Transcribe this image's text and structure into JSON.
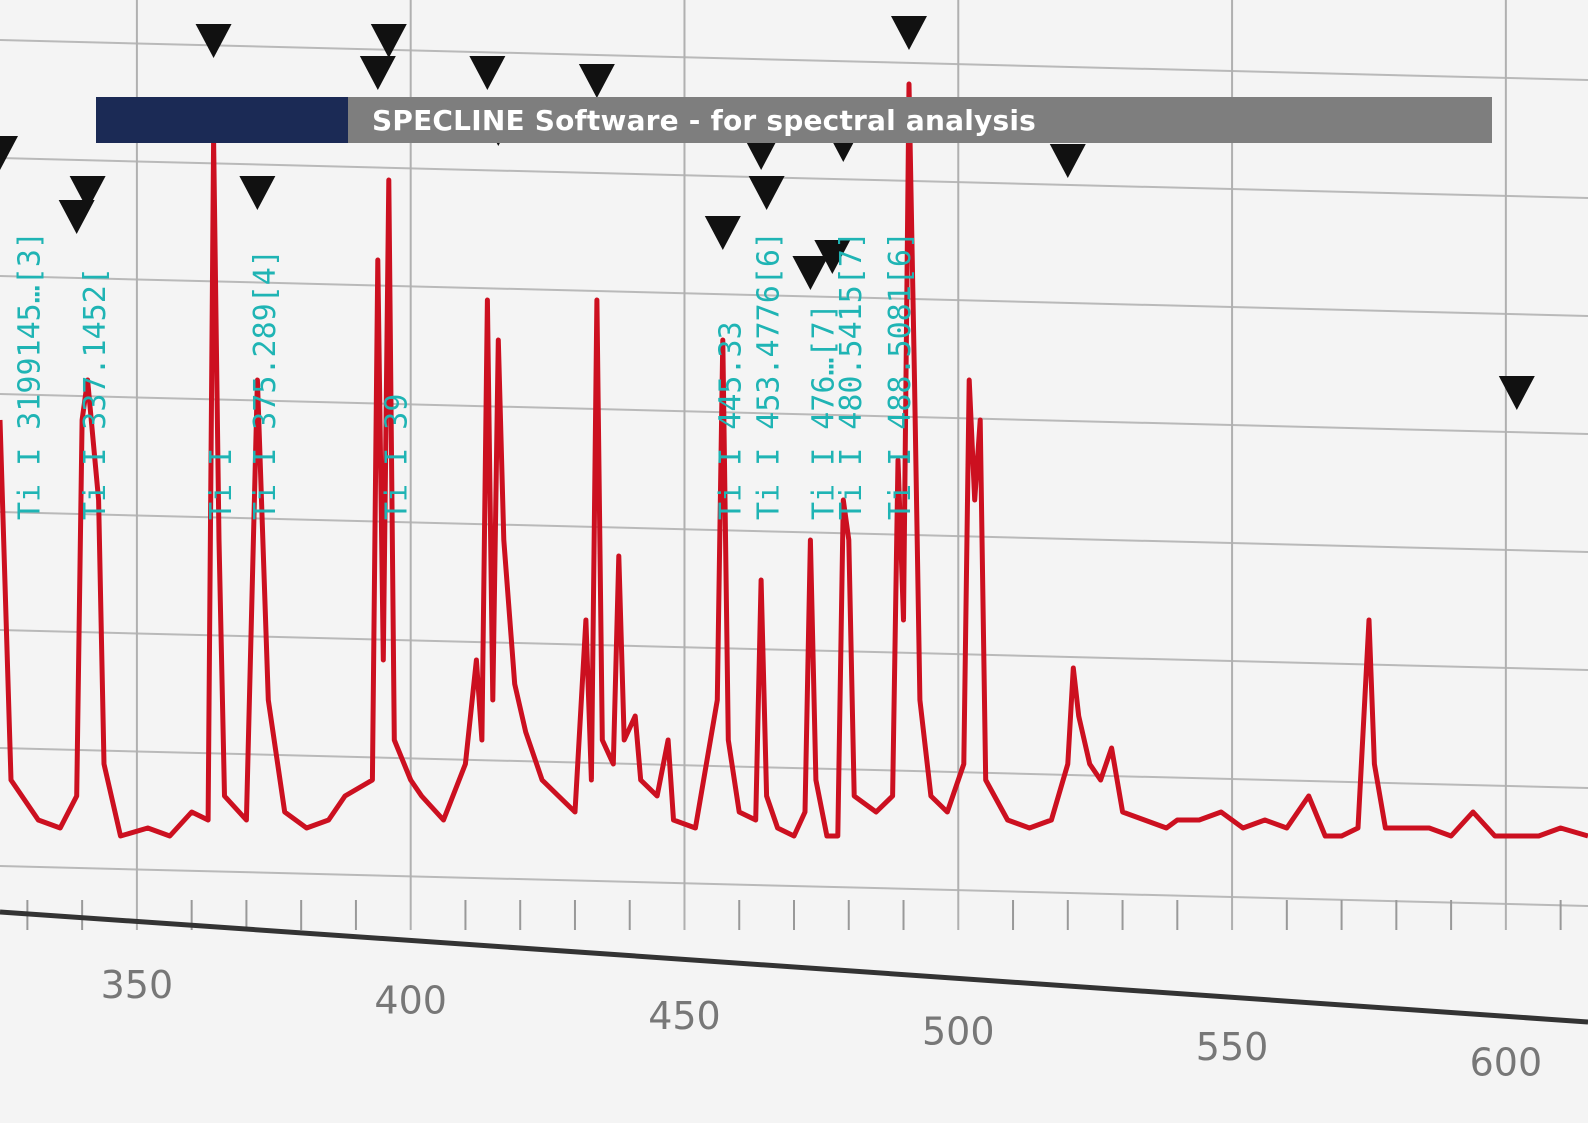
{
  "banner": {
    "title": "SPECLINE Software - for spectral analysis"
  },
  "colors": {
    "line": "#cc1020",
    "annotation": "#1fb4b4",
    "banner_dark": "#1b2a55",
    "banner_gray": "#7e7e7e"
  },
  "chart_data": {
    "type": "line",
    "title": "",
    "xlabel": "",
    "ylabel": "",
    "xlim": [
      325,
      615
    ],
    "ylim": [
      0,
      100
    ],
    "grid": true,
    "x_ticks": [
      350,
      400,
      450,
      500,
      550,
      600
    ],
    "series": [
      {
        "values": [
          [
            325,
            55
          ],
          [
            327,
            10
          ],
          [
            332,
            5
          ],
          [
            336,
            4
          ],
          [
            339,
            8
          ],
          [
            340,
            55
          ],
          [
            341,
            60
          ],
          [
            343,
            45
          ],
          [
            344,
            12
          ],
          [
            347,
            3
          ],
          [
            352,
            4
          ],
          [
            356,
            3
          ],
          [
            360,
            6
          ],
          [
            363,
            5
          ],
          [
            364,
            90
          ],
          [
            365,
            40
          ],
          [
            366,
            8
          ],
          [
            370,
            5
          ],
          [
            372,
            60
          ],
          [
            374,
            20
          ],
          [
            377,
            6
          ],
          [
            381,
            4
          ],
          [
            385,
            5
          ],
          [
            388,
            8
          ],
          [
            393,
            10
          ],
          [
            394,
            75
          ],
          [
            395,
            25
          ],
          [
            396,
            85
          ],
          [
            397,
            15
          ],
          [
            400,
            10
          ],
          [
            402,
            8
          ],
          [
            406,
            5
          ],
          [
            410,
            12
          ],
          [
            412,
            25
          ],
          [
            413,
            15
          ],
          [
            414,
            70
          ],
          [
            415,
            20
          ],
          [
            416,
            65
          ],
          [
            417,
            40
          ],
          [
            419,
            22
          ],
          [
            421,
            16
          ],
          [
            424,
            10
          ],
          [
            427,
            8
          ],
          [
            430,
            6
          ],
          [
            432,
            30
          ],
          [
            433,
            10
          ],
          [
            434,
            70
          ],
          [
            435,
            15
          ],
          [
            437,
            12
          ],
          [
            438,
            38
          ],
          [
            439,
            15
          ],
          [
            441,
            18
          ],
          [
            442,
            10
          ],
          [
            445,
            8
          ],
          [
            447,
            15
          ],
          [
            448,
            5
          ],
          [
            452,
            4
          ],
          [
            456,
            20
          ],
          [
            457,
            65
          ],
          [
            458,
            15
          ],
          [
            460,
            6
          ],
          [
            463,
            5
          ],
          [
            464,
            35
          ],
          [
            465,
            8
          ],
          [
            467,
            4
          ],
          [
            470,
            3
          ],
          [
            472,
            6
          ],
          [
            473,
            40
          ],
          [
            474,
            10
          ],
          [
            476,
            3
          ],
          [
            478,
            3
          ],
          [
            479,
            45
          ],
          [
            480,
            40
          ],
          [
            481,
            8
          ],
          [
            485,
            6
          ],
          [
            488,
            8
          ],
          [
            489,
            50
          ],
          [
            490,
            30
          ],
          [
            491,
            97
          ],
          [
            492,
            60
          ],
          [
            493,
            20
          ],
          [
            495,
            8
          ],
          [
            498,
            6
          ],
          [
            501,
            12
          ],
          [
            502,
            60
          ],
          [
            503,
            45
          ],
          [
            504,
            55
          ],
          [
            505,
            10
          ],
          [
            509,
            5
          ],
          [
            513,
            4
          ],
          [
            517,
            5
          ],
          [
            520,
            12
          ],
          [
            521,
            24
          ],
          [
            522,
            18
          ],
          [
            524,
            12
          ],
          [
            526,
            10
          ],
          [
            528,
            14
          ],
          [
            530,
            6
          ],
          [
            534,
            5
          ],
          [
            538,
            4
          ],
          [
            540,
            5
          ],
          [
            544,
            5
          ],
          [
            548,
            6
          ],
          [
            552,
            4
          ],
          [
            556,
            5
          ],
          [
            560,
            4
          ],
          [
            564,
            8
          ],
          [
            567,
            3
          ],
          [
            570,
            3
          ],
          [
            573,
            4
          ],
          [
            575,
            30
          ],
          [
            576,
            12
          ],
          [
            578,
            4
          ],
          [
            582,
            4
          ],
          [
            586,
            4
          ],
          [
            590,
            3
          ],
          [
            594,
            6
          ],
          [
            598,
            3
          ],
          [
            602,
            3
          ],
          [
            606,
            3
          ],
          [
            610,
            4
          ],
          [
            615,
            3
          ]
        ]
      }
    ],
    "peak_markers": [
      [
        325,
        85
      ],
      [
        339,
        77
      ],
      [
        341,
        80
      ],
      [
        364,
        99
      ],
      [
        372,
        80
      ],
      [
        394,
        95
      ],
      [
        396,
        99
      ],
      [
        414,
        95
      ],
      [
        416,
        88
      ],
      [
        434,
        94
      ],
      [
        457,
        75
      ],
      [
        464,
        85
      ],
      [
        465,
        80
      ],
      [
        473,
        70
      ],
      [
        477,
        72
      ],
      [
        479,
        86
      ],
      [
        491,
        100
      ],
      [
        520,
        84
      ],
      [
        602,
        55
      ]
    ],
    "annotations": [
      {
        "text": "Ti I 3199145…[3]",
        "x": 330
      },
      {
        "text": "Ti I 337.1452[",
        "x": 342
      },
      {
        "text": "Ti I",
        "x": 365
      },
      {
        "text": "Ti I 375.289[4]",
        "x": 373
      },
      {
        "text": "Ti I 39",
        "x": 397
      },
      {
        "text": "Ti I 445.33",
        "x": 458
      },
      {
        "text": "Ti I 453.4776[6]",
        "x": 465
      },
      {
        "text": "Ti I 476…[7]",
        "x": 475
      },
      {
        "text": "Ti I 480.5415[7]",
        "x": 480
      },
      {
        "text": "Ti I 488.5081[6]",
        "x": 489
      }
    ]
  }
}
